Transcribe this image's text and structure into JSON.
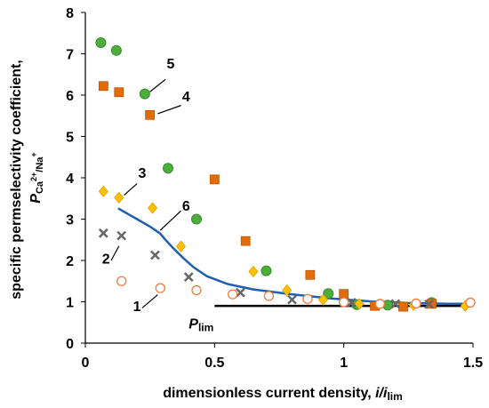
{
  "chart_data": {
    "type": "scatter",
    "x_ticks": [
      "0",
      "0.5",
      "1",
      "1.5"
    ],
    "y_ticks": [
      "0",
      "1",
      "2",
      "3",
      "4",
      "5",
      "6",
      "7",
      "8"
    ],
    "xlim": [
      0,
      1.5
    ],
    "ylim": [
      0,
      8
    ],
    "grid": false,
    "xlabel": "dimensionless current density, i/i",
    "xlabel_sub": "lim",
    "ylabel_line1": "specific permselectivity coefficient,",
    "ylabel_line2_main": "P",
    "ylabel_line2_sub": "Ca",
    "ylabel_line2_sup": "2+",
    "ylabel_line2_sub2": "/Na",
    "ylabel_line2_sup2": "+",
    "series": [
      {
        "marker": "circle-filled",
        "color": "#4CAF3C",
        "edge": "#3A8A2E",
        "points": [
          [
            0.06,
            7.27
          ],
          [
            0.12,
            7.08
          ],
          [
            0.23,
            6.03
          ],
          [
            0.32,
            4.23
          ],
          [
            0.43,
            3.0
          ],
          [
            0.7,
            1.75
          ],
          [
            0.94,
            1.2
          ],
          [
            1.05,
            0.93
          ],
          [
            1.17,
            0.92
          ],
          [
            1.34,
            0.98
          ]
        ]
      },
      {
        "marker": "square",
        "color": "#E36C0A",
        "edge": "#B85708",
        "points": [
          [
            0.07,
            6.22
          ],
          [
            0.13,
            6.07
          ],
          [
            0.25,
            5.52
          ],
          [
            0.5,
            3.96
          ],
          [
            0.62,
            2.47
          ],
          [
            0.87,
            1.65
          ],
          [
            1.0,
            1.19
          ],
          [
            1.12,
            0.9
          ],
          [
            1.23,
            0.88
          ],
          [
            1.34,
            0.95
          ]
        ]
      },
      {
        "marker": "diamond",
        "color": "#FFC000",
        "edge": "#E0A000",
        "points": [
          [
            0.07,
            3.67
          ],
          [
            0.13,
            3.52
          ],
          [
            0.26,
            3.27
          ],
          [
            0.37,
            2.34
          ],
          [
            0.65,
            1.73
          ],
          [
            0.78,
            1.28
          ],
          [
            0.92,
            1.05
          ],
          [
            1.06,
            0.95
          ],
          [
            1.27,
            0.92
          ],
          [
            1.47,
            0.9
          ]
        ]
      },
      {
        "marker": "cross",
        "color": "#666666",
        "edge": "#666666",
        "points": [
          [
            0.07,
            2.66
          ],
          [
            0.14,
            2.6
          ],
          [
            0.27,
            2.13
          ],
          [
            0.4,
            1.6
          ],
          [
            0.6,
            1.22
          ],
          [
            0.8,
            1.05
          ],
          [
            1.03,
            0.98
          ],
          [
            1.2,
            0.95
          ],
          [
            1.33,
            0.94
          ]
        ]
      },
      {
        "marker": "circle-open",
        "color": "#FFFFFF",
        "edge": "#F27A3A",
        "points": [
          [
            0.14,
            1.5
          ],
          [
            0.29,
            1.33
          ],
          [
            0.43,
            1.28
          ],
          [
            0.57,
            1.18
          ],
          [
            0.71,
            1.14
          ],
          [
            0.86,
            1.07
          ],
          [
            1.0,
            0.99
          ],
          [
            1.14,
            0.95
          ],
          [
            1.28,
            0.96
          ],
          [
            1.49,
            0.98
          ]
        ]
      }
    ],
    "curve": {
      "color": "#1F5FAF",
      "points": [
        [
          0.13,
          3.25
        ],
        [
          0.2,
          3.0
        ],
        [
          0.25,
          2.82
        ],
        [
          0.29,
          2.65
        ],
        [
          0.31,
          2.5
        ],
        [
          0.34,
          2.3
        ],
        [
          0.38,
          2.05
        ],
        [
          0.42,
          1.83
        ],
        [
          0.47,
          1.62
        ],
        [
          0.55,
          1.43
        ],
        [
          0.65,
          1.3
        ],
        [
          0.8,
          1.18
        ],
        [
          0.95,
          1.08
        ],
        [
          1.1,
          1.01
        ],
        [
          1.25,
          0.97
        ],
        [
          1.4,
          0.95
        ],
        [
          1.5,
          0.95
        ]
      ]
    },
    "plim_line": {
      "color": "#000000",
      "x": [
        0.5,
        1.5
      ],
      "y": 0.9
    },
    "annotations": [
      {
        "text": "5",
        "tx": 0.33,
        "ty": 6.65,
        "from": [
          0.31,
          6.38
        ],
        "to": [
          0.25,
          6.08
        ]
      },
      {
        "text": "4",
        "tx": 0.39,
        "ty": 5.85,
        "from": [
          0.37,
          5.75
        ],
        "to": [
          0.28,
          5.55
        ]
      },
      {
        "text": "3",
        "tx": 0.22,
        "ty": 4.0,
        "from": [
          0.2,
          3.86
        ],
        "to": [
          0.15,
          3.58
        ]
      },
      {
        "text": "6",
        "tx": 0.39,
        "ty": 3.2,
        "from": [
          0.37,
          3.2
        ],
        "to": [
          0.29,
          2.73
        ]
      },
      {
        "text": "2",
        "tx": 0.08,
        "ty": 1.92,
        "from": [
          0.1,
          2.0
        ],
        "to": [
          0.13,
          2.35
        ]
      },
      {
        "text": "1",
        "tx": 0.2,
        "ty": 0.77,
        "from": [
          0.22,
          0.85
        ],
        "to": [
          0.28,
          1.17
        ]
      }
    ],
    "plim_label": {
      "main": "P",
      "sub": "lim",
      "tx": 0.4,
      "ty": 0.36
    }
  }
}
